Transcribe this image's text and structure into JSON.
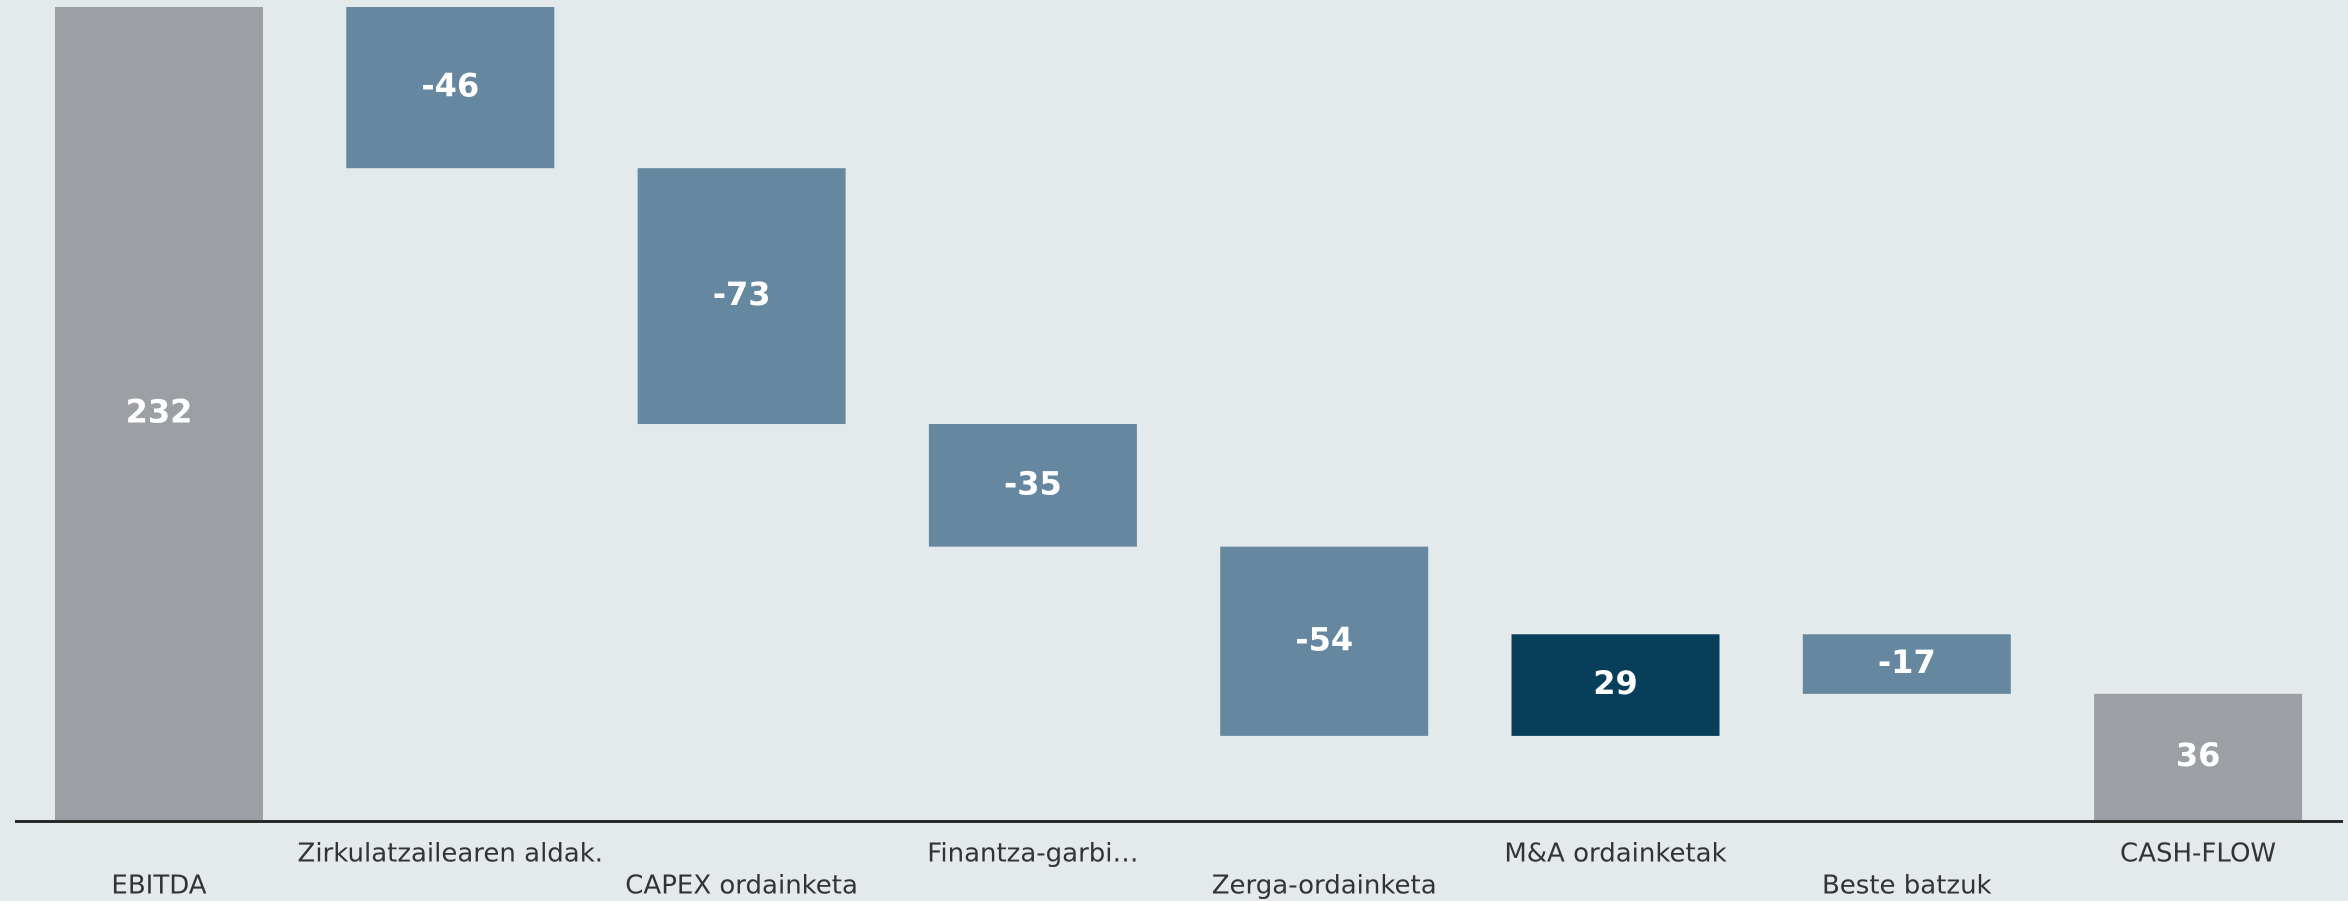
{
  "chart_data": {
    "type": "waterfall",
    "categories": [
      "EBITDA",
      "Zirkulatzailearen aldak.",
      "CAPEX ordainketa",
      "Finantza-garbi…",
      "Zerga-ordainketa",
      "M&A ordainketak",
      "Beste batzuk",
      "CASH-FLOW"
    ],
    "values": [
      232,
      -46,
      -73,
      -35,
      -54,
      29,
      -17,
      36
    ],
    "measures": [
      "total",
      "relative",
      "relative",
      "relative",
      "relative",
      "relative",
      "relative",
      "total"
    ],
    "colors": {
      "total": "#9c9fa3",
      "decrease": "#6687a0",
      "increase": "#073f5a"
    }
  }
}
